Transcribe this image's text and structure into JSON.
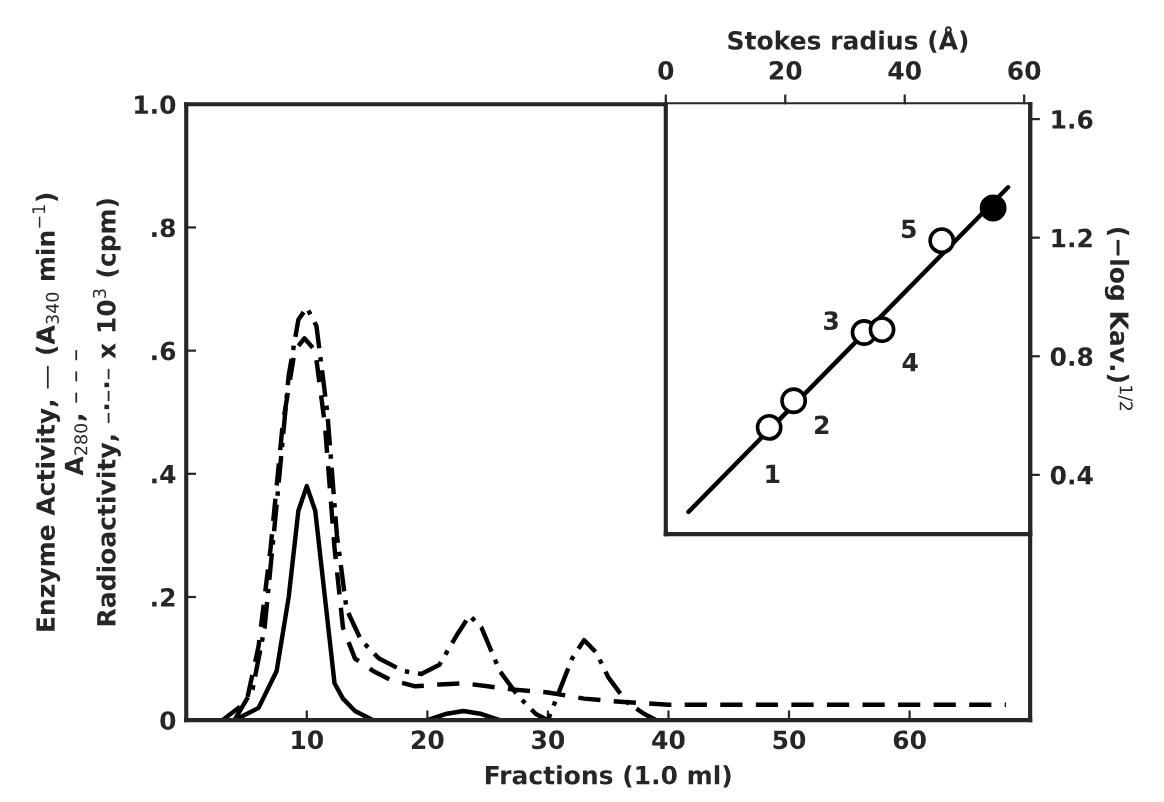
{
  "chart_data": [
    {
      "type": "line",
      "xlabel": "Fractions (1.0 ml)",
      "ylabel": "Enzyme Activity, — (A$_{340}$ min$^{−1}$)\nA$_{280}$, – – –\nRadioactivity, –·–·– x 10$^{3}$ (cpm)",
      "xlim": [
        0,
        70
      ],
      "ylim": [
        0,
        1.0
      ],
      "xticks": [
        10,
        20,
        30,
        40,
        50,
        60
      ],
      "yticks": [
        0,
        {
          "value": 0.2,
          "label": ".2"
        },
        {
          "value": 0.4,
          "label": ".4"
        },
        {
          "value": 0.6,
          "label": ".6"
        },
        {
          "value": 0.8,
          "label": ".8"
        },
        {
          "value": 1.0,
          "label": "1.0"
        }
      ],
      "grid": false,
      "legend": false,
      "series": [
        {
          "color": "#000000",
          "line_style": "solid",
          "x": [
            0,
            4,
            6,
            7.5,
            8.5,
            9.3,
            10,
            10.7,
            11.5,
            12.3,
            13,
            14,
            15.5,
            20,
            21.5,
            23,
            24.5,
            26
          ],
          "values": [
            0,
            0,
            0.02,
            0.08,
            0.2,
            0.34,
            0.38,
            0.34,
            0.2,
            0.06,
            0.035,
            0.015,
            0,
            0,
            0.01,
            0.015,
            0.01,
            0
          ]
        },
        {
          "color": "#000000",
          "line_style": "dashed",
          "x": [
            3,
            5,
            6,
            7,
            8,
            9,
            9.8,
            10.7,
            11.5,
            12.3,
            13,
            14,
            15.5,
            17,
            19,
            21,
            23,
            25,
            27,
            30,
            33,
            36,
            40,
            50,
            60,
            68
          ],
          "values": [
            0,
            0.03,
            0.12,
            0.28,
            0.48,
            0.6,
            0.62,
            0.6,
            0.48,
            0.28,
            0.15,
            0.1,
            0.08,
            0.065,
            0.055,
            0.058,
            0.06,
            0.055,
            0.05,
            0.045,
            0.035,
            0.03,
            0.025,
            0.025,
            0.025,
            0.025
          ]
        },
        {
          "color": "#000000",
          "line_style": "dashdot",
          "x": [
            4,
            5.5,
            6.5,
            7.5,
            8.5,
            9.3,
            10,
            10.8,
            11.7,
            12.5,
            13.3,
            14.5,
            16,
            18,
            19.5,
            21,
            22.5,
            23.5,
            24.5,
            26,
            27.5,
            29,
            30,
            31,
            32,
            33,
            34,
            35,
            36.5,
            38,
            39
          ],
          "values": [
            0,
            0.05,
            0.15,
            0.35,
            0.56,
            0.65,
            0.67,
            0.64,
            0.5,
            0.3,
            0.18,
            0.13,
            0.1,
            0.08,
            0.075,
            0.09,
            0.14,
            0.17,
            0.15,
            0.08,
            0.04,
            0.01,
            0,
            0.05,
            0.1,
            0.13,
            0.11,
            0.07,
            0.03,
            0.01,
            0
          ]
        }
      ]
    },
    {
      "type": "scatter",
      "xlabel": "Stokes radius (Å)",
      "ylabel": "(−log Kav.)$^{1/2}$",
      "xlim": [
        0,
        61
      ],
      "ylim": [
        0.2,
        1.65
      ],
      "xticks": [
        0,
        20,
        40,
        60
      ],
      "yticks": [
        0.4,
        0.8,
        1.2,
        1.6
      ],
      "grid": false,
      "legend": false,
      "series": [
        {
          "type": "line",
          "color": "#000000",
          "x": [
            3.8,
            57.3
          ],
          "values": [
            0.275,
            1.37
          ]
        },
        {
          "type": "scatter",
          "marker": "circle",
          "color": "#ffffff",
          "x": [
            17.3,
            21.4,
            33.2,
            36.2,
            46.2
          ],
          "values": [
            0.56,
            0.65,
            0.88,
            0.89,
            1.19
          ]
        },
        {
          "type": "scatter",
          "marker": "circle",
          "color": "#000000",
          "x": [
            54.8
          ],
          "values": [
            1.3
          ]
        }
      ],
      "annotations": [
        {
          "text": "1",
          "x": 17.3,
          "y": 0.56
        },
        {
          "text": "2",
          "x": 21.4,
          "y": 0.65
        },
        {
          "text": "3",
          "x": 33.2,
          "y": 0.88
        },
        {
          "text": "4",
          "x": 36.2,
          "y": 0.89
        },
        {
          "text": "5",
          "x": 46.2,
          "y": 1.19
        }
      ]
    }
  ]
}
